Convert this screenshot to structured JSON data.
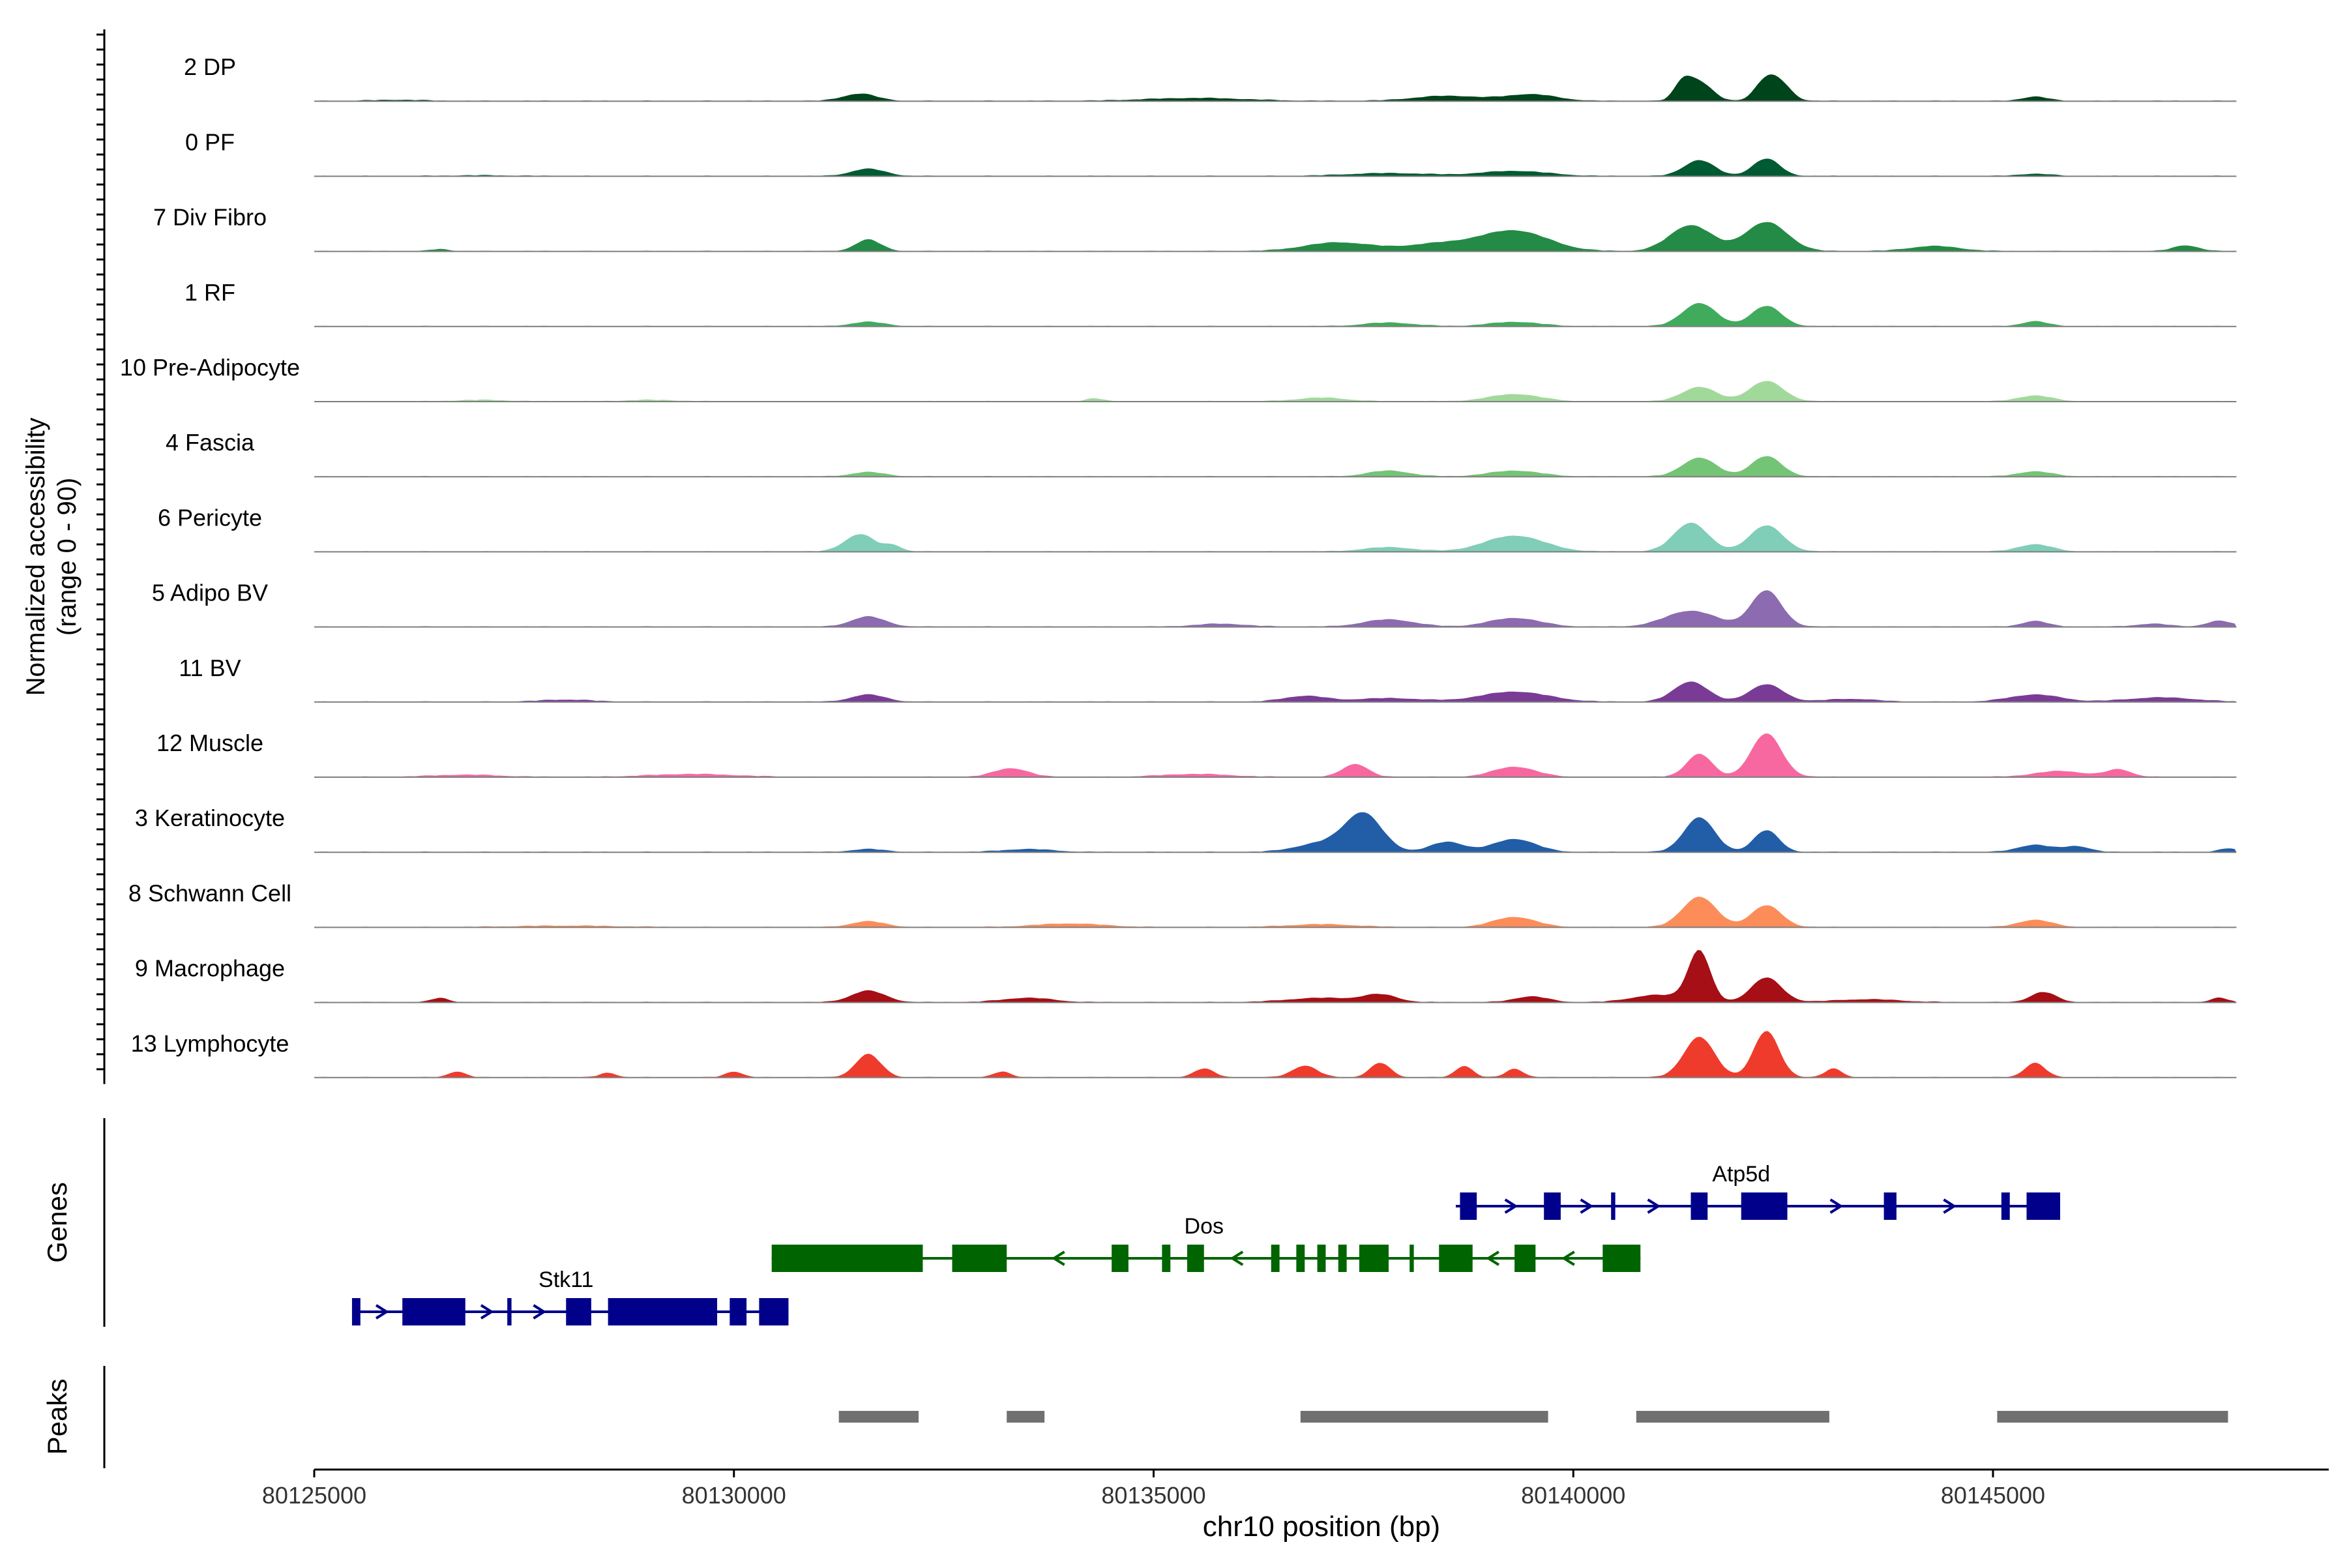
{
  "chart_data": {
    "type": "area",
    "title": "",
    "xlabel": "chr10 position (bp)",
    "ylabel_line1": "Normalized accessibility",
    "ylabel_line2": "(range 0 - 90)",
    "xlim": [
      80125000,
      80149000
    ],
    "ylim": [
      0,
      90
    ],
    "x_ticks": [
      80125000,
      80130000,
      80135000,
      80140000,
      80145000
    ],
    "x_tick_labels": [
      "80125000",
      "80130000",
      "80135000",
      "80140000",
      "80145000"
    ],
    "track_panel_labels": {
      "genes": "Genes",
      "peaks": "Peaks"
    },
    "series": [
      {
        "name": "2 DP",
        "color": "#00441b",
        "peaks": [
          [
            80126000,
            1.5,
            300
          ],
          [
            80131500,
            10,
            200
          ],
          [
            80135500,
            4,
            600
          ],
          [
            80138500,
            7,
            400
          ],
          [
            80139500,
            9,
            300
          ],
          [
            80141300,
            22,
            100
          ],
          [
            80141500,
            26,
            150
          ],
          [
            80142300,
            30,
            130
          ],
          [
            80142500,
            18,
            120
          ],
          [
            80145500,
            6,
            150
          ]
        ]
      },
      {
        "name": "0 PF",
        "color": "#005a32",
        "peaks": [
          [
            80127000,
            1,
            400
          ],
          [
            80131600,
            10,
            200
          ],
          [
            80137800,
            4,
            500
          ],
          [
            80139300,
            7,
            400
          ],
          [
            80141500,
            22,
            180
          ],
          [
            80142300,
            24,
            160
          ],
          [
            80145500,
            3,
            200
          ]
        ]
      },
      {
        "name": "7 Div Fibro",
        "color": "#238b45",
        "peaks": [
          [
            80126500,
            3,
            100
          ],
          [
            80131600,
            16,
            150
          ],
          [
            80137200,
            12,
            400
          ],
          [
            80138400,
            10,
            400
          ],
          [
            80139300,
            28,
            400
          ],
          [
            80141400,
            36,
            250
          ],
          [
            80142300,
            40,
            250
          ],
          [
            80144300,
            7,
            300
          ],
          [
            80147300,
            8,
            150
          ]
        ]
      },
      {
        "name": "1 RF",
        "color": "#41ab5d",
        "peaks": [
          [
            80131600,
            6,
            200
          ],
          [
            80137800,
            5,
            300
          ],
          [
            80139300,
            6,
            300
          ],
          [
            80141500,
            32,
            200
          ],
          [
            80142300,
            28,
            180
          ],
          [
            80145500,
            7,
            150
          ]
        ]
      },
      {
        "name": "10 Pre-Adipocyte",
        "color": "#a1d99b",
        "peaks": [
          [
            80127000,
            2,
            300
          ],
          [
            80129000,
            2,
            300
          ],
          [
            80134300,
            4,
            100
          ],
          [
            80137000,
            5,
            300
          ],
          [
            80139300,
            10,
            300
          ],
          [
            80141500,
            20,
            200
          ],
          [
            80142300,
            28,
            200
          ],
          [
            80145500,
            8,
            200
          ]
        ]
      },
      {
        "name": "4 Fascia",
        "color": "#74c476",
        "peaks": [
          [
            80131600,
            6,
            200
          ],
          [
            80137800,
            8,
            250
          ],
          [
            80139300,
            8,
            300
          ],
          [
            80141500,
            26,
            200
          ],
          [
            80142300,
            28,
            180
          ],
          [
            80145500,
            7,
            200
          ]
        ]
      },
      {
        "name": "6 Pericyte",
        "color": "#80cdb8",
        "peaks": [
          [
            80131500,
            24,
            180
          ],
          [
            80131900,
            8,
            100
          ],
          [
            80137800,
            6,
            300
          ],
          [
            80139300,
            22,
            350
          ],
          [
            80141400,
            40,
            200
          ],
          [
            80142300,
            36,
            200
          ],
          [
            80145500,
            10,
            200
          ]
        ]
      },
      {
        "name": "5 Adipo BV",
        "color": "#8c6bb1",
        "peaks": [
          [
            80131600,
            14,
            200
          ],
          [
            80135800,
            4,
            300
          ],
          [
            80137800,
            10,
            300
          ],
          [
            80139300,
            12,
            300
          ],
          [
            80141400,
            22,
            300
          ],
          [
            80142300,
            50,
            180
          ],
          [
            80145500,
            8,
            150
          ],
          [
            80146900,
            4,
            200
          ],
          [
            80147700,
            8,
            150
          ]
        ]
      },
      {
        "name": "11 BV",
        "color": "#7a3b97",
        "peaks": [
          [
            80128000,
            3,
            300
          ],
          [
            80131600,
            10,
            200
          ],
          [
            80136800,
            8,
            250
          ],
          [
            80137800,
            5,
            400
          ],
          [
            80139300,
            14,
            400
          ],
          [
            80141400,
            28,
            200
          ],
          [
            80142300,
            24,
            200
          ],
          [
            80143300,
            4,
            300
          ],
          [
            80145500,
            10,
            300
          ],
          [
            80147000,
            6,
            400
          ]
        ]
      },
      {
        "name": "12 Muscle",
        "color": "#f768a1",
        "peaks": [
          [
            80126800,
            3,
            400
          ],
          [
            80129500,
            4,
            500
          ],
          [
            80133300,
            12,
            200
          ],
          [
            80135500,
            4,
            400
          ],
          [
            80137400,
            18,
            150
          ],
          [
            80139300,
            14,
            250
          ],
          [
            80141500,
            32,
            150
          ],
          [
            80142300,
            60,
            180
          ],
          [
            80145800,
            8,
            300
          ],
          [
            80146500,
            10,
            150
          ]
        ]
      },
      {
        "name": "3 Keratinocyte",
        "color": "#225ea8",
        "peaks": [
          [
            80131600,
            4,
            200
          ],
          [
            80133500,
            4,
            300
          ],
          [
            80137000,
            12,
            300
          ],
          [
            80137500,
            52,
            220
          ],
          [
            80138500,
            14,
            200
          ],
          [
            80139300,
            18,
            250
          ],
          [
            80141500,
            48,
            180
          ],
          [
            80142300,
            30,
            150
          ],
          [
            80145500,
            10,
            200
          ],
          [
            80146000,
            8,
            150
          ],
          [
            80147800,
            5,
            100
          ]
        ]
      },
      {
        "name": "8 Schwann Cell",
        "color": "#fc8d59",
        "peaks": [
          [
            80128000,
            2,
            600
          ],
          [
            80131600,
            8,
            200
          ],
          [
            80134000,
            5,
            400
          ],
          [
            80137000,
            4,
            400
          ],
          [
            80139300,
            14,
            250
          ],
          [
            80141500,
            42,
            200
          ],
          [
            80142300,
            30,
            180
          ],
          [
            80145500,
            10,
            200
          ]
        ]
      },
      {
        "name": "9 Macrophage",
        "color": "#a50f15",
        "peaks": [
          [
            80126500,
            6,
            100
          ],
          [
            80131600,
            16,
            200
          ],
          [
            80133500,
            6,
            300
          ],
          [
            80137000,
            6,
            400
          ],
          [
            80137700,
            10,
            200
          ],
          [
            80139500,
            8,
            200
          ],
          [
            80141000,
            10,
            300
          ],
          [
            80141500,
            70,
            130
          ],
          [
            80142300,
            34,
            180
          ],
          [
            80143500,
            4,
            400
          ],
          [
            80145600,
            14,
            150
          ],
          [
            80147700,
            6,
            100
          ]
        ]
      },
      {
        "name": "13 Lymphocyte",
        "color": "#ef3b2c",
        "peaks": [
          [
            80126700,
            8,
            100
          ],
          [
            80128500,
            6,
            100
          ],
          [
            80130000,
            8,
            100
          ],
          [
            80131600,
            32,
            150
          ],
          [
            80133200,
            8,
            100
          ],
          [
            80135600,
            12,
            120
          ],
          [
            80136800,
            16,
            150
          ],
          [
            80137700,
            20,
            120
          ],
          [
            80138700,
            16,
            100
          ],
          [
            80139300,
            12,
            100
          ],
          [
            80141500,
            56,
            180
          ],
          [
            80142300,
            64,
            150
          ],
          [
            80143100,
            12,
            100
          ],
          [
            80145500,
            20,
            120
          ]
        ]
      }
    ],
    "genes": [
      {
        "name": "Stk11",
        "strand": "+",
        "color": "#00008b",
        "start": 80125450,
        "end": 80130650,
        "label_x": 80128000,
        "exons": [
          [
            80125450,
            80125550
          ],
          [
            80126050,
            80126800
          ],
          [
            80127300,
            80127350
          ],
          [
            80128000,
            80128300
          ],
          [
            80128500,
            80129800
          ],
          [
            80129950,
            80130150
          ],
          [
            80130300,
            80130650
          ]
        ]
      },
      {
        "name": "Dos",
        "strand": "-",
        "color": "#006400",
        "start": 80130450,
        "end": 80140800,
        "label_x": 80135600,
        "exons": [
          [
            80130450,
            80132250
          ],
          [
            80132600,
            80133250
          ],
          [
            80134500,
            80134700
          ],
          [
            80135100,
            80135200
          ],
          [
            80135400,
            80135600
          ],
          [
            80136400,
            80136500
          ],
          [
            80136700,
            80136800
          ],
          [
            80136950,
            80137050
          ],
          [
            80137200,
            80137300
          ],
          [
            80137450,
            80137800
          ],
          [
            80138050,
            80138100
          ],
          [
            80138400,
            80138800
          ],
          [
            80139300,
            80139550
          ],
          [
            80140350,
            80140800
          ]
        ]
      },
      {
        "name": "Atp5d",
        "strand": "+",
        "color": "#00008b",
        "start": 80138600,
        "end": 80145800,
        "label_x": 80142000,
        "exons": [
          [
            80138650,
            80138850
          ],
          [
            80139650,
            80139850
          ],
          [
            80140450,
            80140500
          ],
          [
            80141400,
            80141600
          ],
          [
            80142000,
            80142550
          ],
          [
            80143700,
            80143850
          ],
          [
            80145100,
            80145200
          ],
          [
            80145400,
            80145800
          ]
        ]
      }
    ],
    "peaks_track": [
      [
        80131250,
        80132200
      ],
      [
        80133250,
        80133700
      ],
      [
        80136750,
        80139700
      ],
      [
        80140750,
        80143050
      ],
      [
        80145050,
        80147800
      ]
    ],
    "grid": false,
    "legend": "none"
  }
}
